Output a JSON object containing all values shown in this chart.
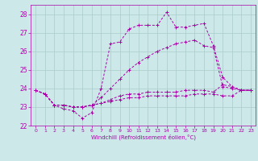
{
  "background_color": "#cce8e8",
  "grid_color": "#aacccc",
  "line_color": "#aa00aa",
  "xlabel": "Windchill (Refroidissement éolien,°C)",
  "xlim": [
    -0.5,
    23.5
  ],
  "ylim": [
    22.0,
    28.5
  ],
  "yticks": [
    22,
    23,
    24,
    25,
    26,
    27,
    28
  ],
  "xticks": [
    0,
    1,
    2,
    3,
    4,
    5,
    6,
    7,
    8,
    9,
    10,
    11,
    12,
    13,
    14,
    15,
    16,
    17,
    18,
    19,
    20,
    21,
    22,
    23
  ],
  "series": [
    {
      "x": [
        0,
        1,
        2,
        3,
        4,
        5,
        6,
        7,
        8,
        9,
        10,
        11,
        12,
        13,
        14,
        15,
        16,
        17,
        18,
        19,
        20,
        21,
        22,
        23
      ],
      "y": [
        23.9,
        23.7,
        23.1,
        22.9,
        22.8,
        22.4,
        22.7,
        24.0,
        26.4,
        26.5,
        27.2,
        27.4,
        27.4,
        27.4,
        28.1,
        27.3,
        27.3,
        27.4,
        27.5,
        26.3,
        24.6,
        24.1,
        23.9,
        23.9
      ]
    },
    {
      "x": [
        0,
        1,
        2,
        3,
        4,
        5,
        6,
        7,
        8,
        9,
        10,
        11,
        12,
        13,
        14,
        15,
        16,
        17,
        18,
        19,
        20,
        21,
        22,
        23
      ],
      "y": [
        23.9,
        23.7,
        23.1,
        23.1,
        23.0,
        23.0,
        23.1,
        23.5,
        24.0,
        24.5,
        25.0,
        25.4,
        25.7,
        26.0,
        26.2,
        26.4,
        26.5,
        26.6,
        26.3,
        26.2,
        24.1,
        24.0,
        23.9,
        23.9
      ]
    },
    {
      "x": [
        0,
        1,
        2,
        3,
        4,
        5,
        6,
        7,
        8,
        9,
        10,
        11,
        12,
        13,
        14,
        15,
        16,
        17,
        18,
        19,
        20,
        21,
        22,
        23
      ],
      "y": [
        23.9,
        23.7,
        23.1,
        23.1,
        23.0,
        23.0,
        23.1,
        23.2,
        23.4,
        23.6,
        23.7,
        23.7,
        23.8,
        23.8,
        23.8,
        23.8,
        23.9,
        23.9,
        23.9,
        23.8,
        24.2,
        24.1,
        23.9,
        23.9
      ]
    },
    {
      "x": [
        0,
        1,
        2,
        3,
        4,
        5,
        6,
        7,
        8,
        9,
        10,
        11,
        12,
        13,
        14,
        15,
        16,
        17,
        18,
        19,
        20,
        21,
        22,
        23
      ],
      "y": [
        23.9,
        23.7,
        23.1,
        23.1,
        23.0,
        23.0,
        23.1,
        23.2,
        23.3,
        23.4,
        23.5,
        23.5,
        23.6,
        23.6,
        23.6,
        23.6,
        23.6,
        23.7,
        23.7,
        23.7,
        23.6,
        23.6,
        23.9,
        23.9
      ]
    }
  ]
}
